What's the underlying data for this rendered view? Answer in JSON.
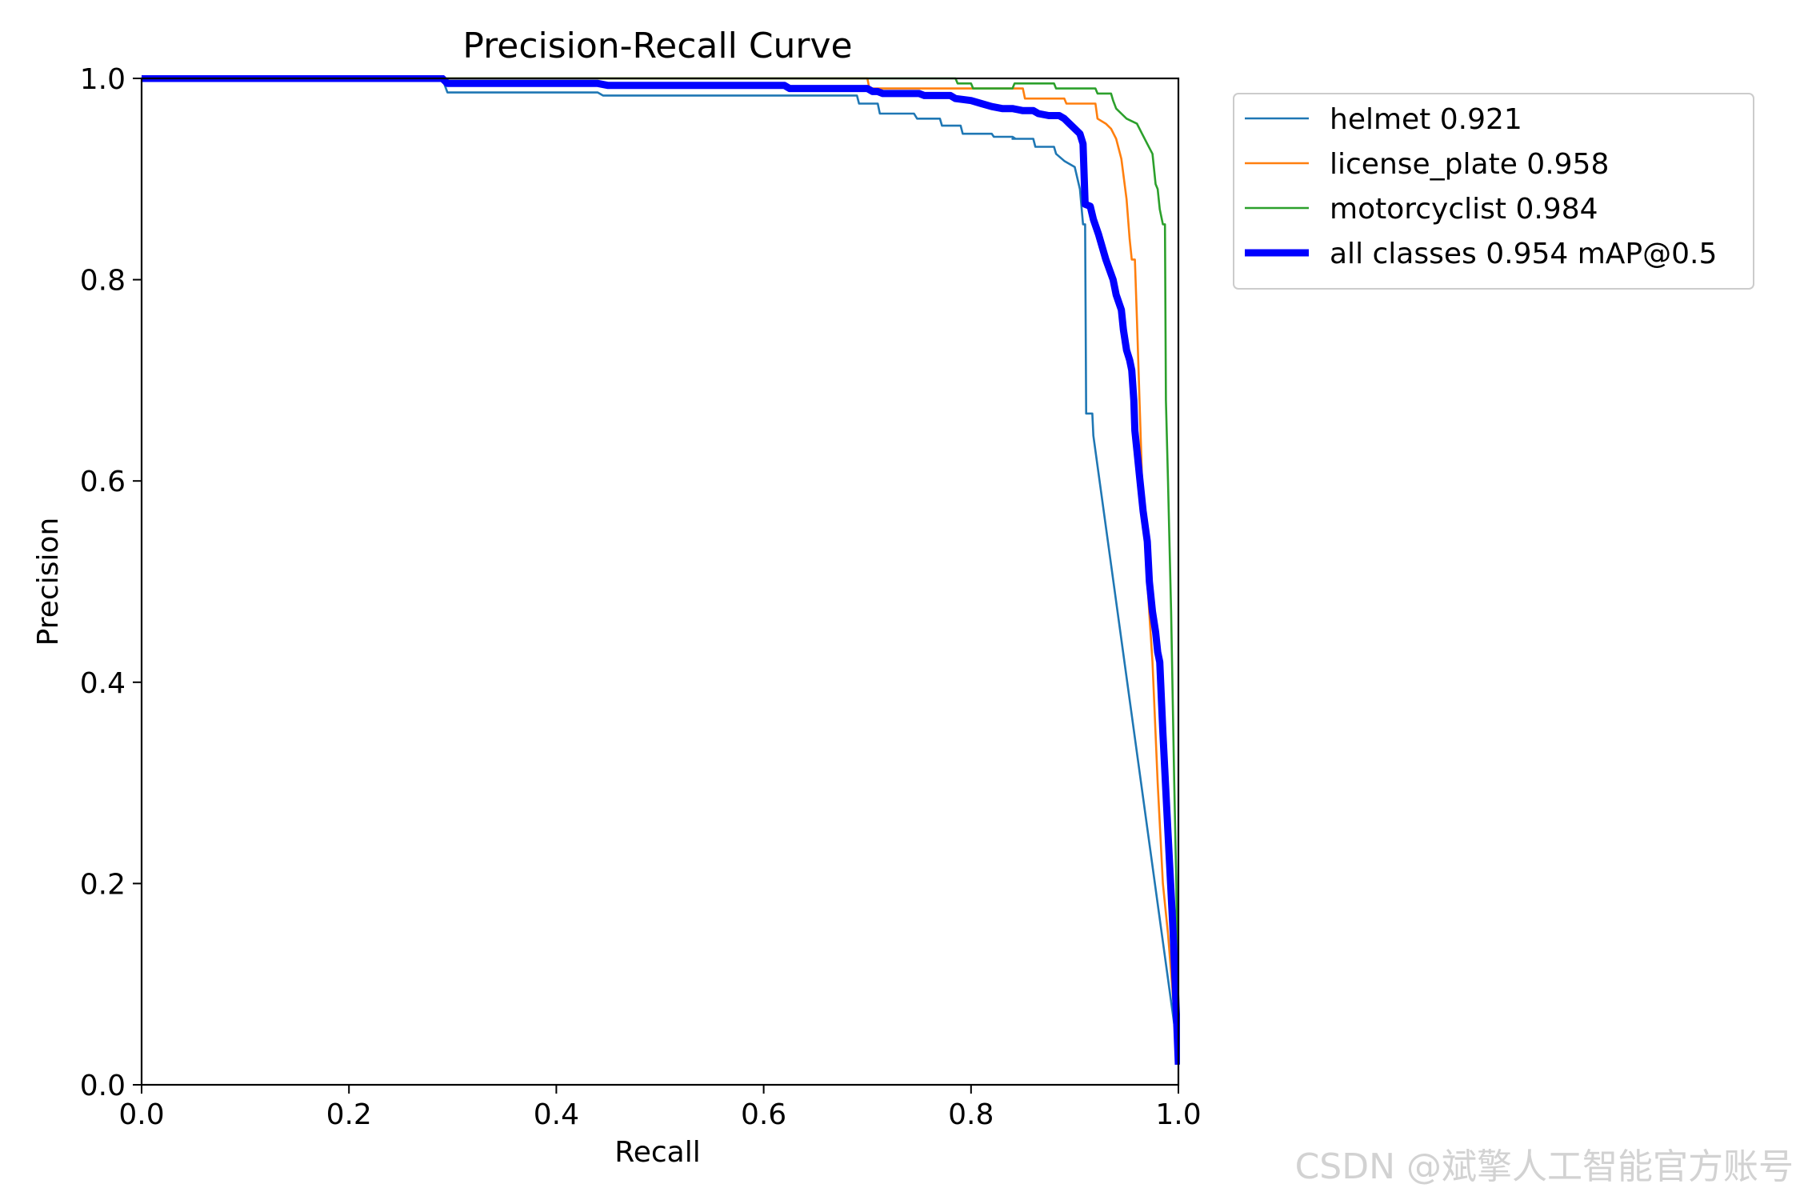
{
  "chart_data": {
    "type": "line",
    "title": "Precision-Recall Curve",
    "xlabel": "Recall",
    "ylabel": "Precision",
    "xlim": [
      0.0,
      1.0
    ],
    "ylim": [
      0.0,
      1.0
    ],
    "xticks": [
      "0.0",
      "0.2",
      "0.4",
      "0.6",
      "0.8",
      "1.0"
    ],
    "yticks": [
      "0.0",
      "0.2",
      "0.4",
      "0.6",
      "0.8",
      "1.0"
    ],
    "grid": false,
    "legend_position": "outside-top-right",
    "series": [
      {
        "name": "helmet 0.921",
        "color": "#1f77b4",
        "line_width": "thin",
        "points": [
          [
            0.0,
            1.0
          ],
          [
            0.29,
            1.0
          ],
          [
            0.295,
            0.986
          ],
          [
            0.44,
            0.986
          ],
          [
            0.445,
            0.983
          ],
          [
            0.69,
            0.983
          ],
          [
            0.692,
            0.975
          ],
          [
            0.71,
            0.975
          ],
          [
            0.712,
            0.965
          ],
          [
            0.745,
            0.965
          ],
          [
            0.748,
            0.96
          ],
          [
            0.77,
            0.96
          ],
          [
            0.772,
            0.953
          ],
          [
            0.79,
            0.953
          ],
          [
            0.792,
            0.945
          ],
          [
            0.82,
            0.945
          ],
          [
            0.822,
            0.942
          ],
          [
            0.84,
            0.942
          ],
          [
            0.843,
            0.94
          ],
          [
            0.84,
            0.94
          ],
          [
            0.86,
            0.94
          ],
          [
            0.862,
            0.932
          ],
          [
            0.88,
            0.932
          ],
          [
            0.882,
            0.925
          ],
          [
            0.89,
            0.918
          ],
          [
            0.9,
            0.912
          ],
          [
            0.905,
            0.89
          ],
          [
            0.908,
            0.855
          ],
          [
            0.91,
            0.855
          ],
          [
            0.911,
            0.667
          ],
          [
            0.917,
            0.667
          ],
          [
            0.918,
            0.645
          ],
          [
            1.0,
            0.03
          ]
        ]
      },
      {
        "name": "license_plate 0.958",
        "color": "#ff7f0e",
        "line_width": "thin",
        "points": [
          [
            0.0,
            1.0
          ],
          [
            0.7,
            1.0
          ],
          [
            0.702,
            0.99
          ],
          [
            0.85,
            0.99
          ],
          [
            0.852,
            0.98
          ],
          [
            0.89,
            0.98
          ],
          [
            0.892,
            0.975
          ],
          [
            0.92,
            0.975
          ],
          [
            0.922,
            0.96
          ],
          [
            0.93,
            0.955
          ],
          [
            0.935,
            0.95
          ],
          [
            0.94,
            0.94
          ],
          [
            0.945,
            0.92
          ],
          [
            0.95,
            0.88
          ],
          [
            0.953,
            0.84
          ],
          [
            0.955,
            0.82
          ],
          [
            0.958,
            0.82
          ],
          [
            0.96,
            0.76
          ],
          [
            0.965,
            0.6
          ],
          [
            0.97,
            0.5
          ],
          [
            0.975,
            0.42
          ],
          [
            0.98,
            0.3
          ],
          [
            0.985,
            0.2
          ],
          [
            0.99,
            0.15
          ],
          [
            1.0,
            0.02
          ]
        ]
      },
      {
        "name": "motorcyclist 0.984",
        "color": "#2ca02c",
        "line_width": "thin",
        "points": [
          [
            0.0,
            1.0
          ],
          [
            0.785,
            1.0
          ],
          [
            0.787,
            0.995
          ],
          [
            0.8,
            0.995
          ],
          [
            0.802,
            0.99
          ],
          [
            0.84,
            0.99
          ],
          [
            0.842,
            0.995
          ],
          [
            0.88,
            0.995
          ],
          [
            0.882,
            0.99
          ],
          [
            0.92,
            0.99
          ],
          [
            0.922,
            0.985
          ],
          [
            0.935,
            0.985
          ],
          [
            0.937,
            0.978
          ],
          [
            0.94,
            0.97
          ],
          [
            0.945,
            0.965
          ],
          [
            0.95,
            0.96
          ],
          [
            0.96,
            0.955
          ],
          [
            0.965,
            0.945
          ],
          [
            0.97,
            0.935
          ],
          [
            0.975,
            0.925
          ],
          [
            0.978,
            0.895
          ],
          [
            0.98,
            0.89
          ],
          [
            0.982,
            0.87
          ],
          [
            0.985,
            0.855
          ],
          [
            0.987,
            0.855
          ],
          [
            0.988,
            0.68
          ],
          [
            0.99,
            0.6
          ],
          [
            0.993,
            0.47
          ],
          [
            0.996,
            0.3
          ],
          [
            0.998,
            0.2
          ],
          [
            1.0,
            0.02
          ]
        ]
      },
      {
        "name": "all classes 0.954 mAP@0.5",
        "color": "#0000ff",
        "line_width": "thick",
        "points": [
          [
            0.0,
            1.0
          ],
          [
            0.29,
            1.0
          ],
          [
            0.295,
            0.995
          ],
          [
            0.44,
            0.995
          ],
          [
            0.45,
            0.993
          ],
          [
            0.62,
            0.993
          ],
          [
            0.625,
            0.99
          ],
          [
            0.7,
            0.99
          ],
          [
            0.705,
            0.987
          ],
          [
            0.71,
            0.987
          ],
          [
            0.715,
            0.985
          ],
          [
            0.75,
            0.985
          ],
          [
            0.755,
            0.983
          ],
          [
            0.78,
            0.983
          ],
          [
            0.785,
            0.98
          ],
          [
            0.8,
            0.978
          ],
          [
            0.81,
            0.975
          ],
          [
            0.82,
            0.972
          ],
          [
            0.83,
            0.97
          ],
          [
            0.84,
            0.97
          ],
          [
            0.85,
            0.968
          ],
          [
            0.86,
            0.968
          ],
          [
            0.865,
            0.965
          ],
          [
            0.875,
            0.963
          ],
          [
            0.885,
            0.963
          ],
          [
            0.89,
            0.96
          ],
          [
            0.895,
            0.955
          ],
          [
            0.9,
            0.95
          ],
          [
            0.905,
            0.945
          ],
          [
            0.908,
            0.935
          ],
          [
            0.91,
            0.875
          ],
          [
            0.915,
            0.873
          ],
          [
            0.918,
            0.86
          ],
          [
            0.923,
            0.845
          ],
          [
            0.93,
            0.82
          ],
          [
            0.937,
            0.8
          ],
          [
            0.94,
            0.785
          ],
          [
            0.945,
            0.77
          ],
          [
            0.947,
            0.75
          ],
          [
            0.95,
            0.73
          ],
          [
            0.953,
            0.72
          ],
          [
            0.955,
            0.71
          ],
          [
            0.957,
            0.68
          ],
          [
            0.958,
            0.65
          ],
          [
            0.96,
            0.63
          ],
          [
            0.963,
            0.6
          ],
          [
            0.966,
            0.57
          ],
          [
            0.97,
            0.54
          ],
          [
            0.972,
            0.5
          ],
          [
            0.975,
            0.47
          ],
          [
            0.978,
            0.45
          ],
          [
            0.98,
            0.43
          ],
          [
            0.982,
            0.42
          ],
          [
            0.985,
            0.35
          ],
          [
            0.99,
            0.25
          ],
          [
            0.995,
            0.15
          ],
          [
            1.0,
            0.02
          ]
        ]
      }
    ]
  },
  "watermark": "CSDN @斌擎人工智能官方账号"
}
